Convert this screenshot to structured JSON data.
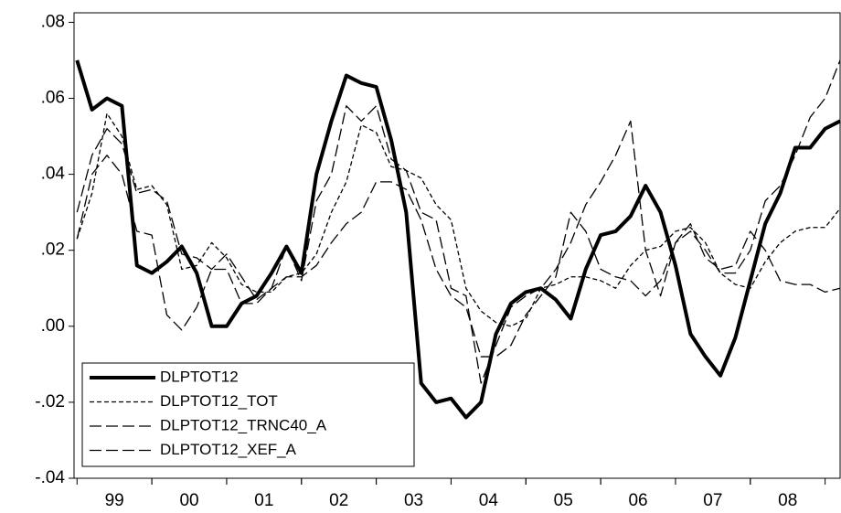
{
  "chart_data": {
    "type": "line",
    "x": [
      1999.0,
      1999.2,
      1999.4,
      1999.6,
      1999.8,
      2000.0,
      2000.2,
      2000.4,
      2000.6,
      2000.8,
      2001.0,
      2001.2,
      2001.4,
      2001.6,
      2001.8,
      2002.0,
      2002.2,
      2002.4,
      2002.6,
      2002.8,
      2003.0,
      2003.2,
      2003.4,
      2003.6,
      2003.8,
      2004.0,
      2004.2,
      2004.4,
      2004.6,
      2004.8,
      2005.0,
      2005.2,
      2005.4,
      2005.6,
      2005.8,
      2006.0,
      2006.2,
      2006.4,
      2006.6,
      2006.8,
      2007.0,
      2007.2,
      2007.4,
      2007.6,
      2007.8,
      2008.0,
      2008.2,
      2008.4,
      2008.6,
      2008.8,
      2009.0,
      2009.2
    ],
    "series": [
      {
        "name": "DLPTOT12",
        "color": "#000000",
        "line_style": "thick-solid",
        "values": [
          0.07,
          0.057,
          0.06,
          0.058,
          0.016,
          0.014,
          0.017,
          0.021,
          0.014,
          0.0,
          0.0,
          0.006,
          0.008,
          0.014,
          0.021,
          0.014,
          0.04,
          0.054,
          0.066,
          0.064,
          0.063,
          0.049,
          0.03,
          -0.015,
          -0.02,
          -0.019,
          -0.024,
          -0.02,
          -0.002,
          0.006,
          0.009,
          0.01,
          0.007,
          0.002,
          0.015,
          0.024,
          0.025,
          0.029,
          0.037,
          0.03,
          0.016,
          -0.002,
          -0.008,
          -0.013,
          -0.003,
          0.012,
          0.027,
          0.035,
          0.047,
          0.047,
          0.052,
          0.054
        ]
      },
      {
        "name": "DLPTOT12_TOT",
        "color": "#000000",
        "line_style": "short-dash",
        "values": [
          0.023,
          0.035,
          0.056,
          0.05,
          0.036,
          0.037,
          0.032,
          0.015,
          0.016,
          0.022,
          0.018,
          0.011,
          0.009,
          0.009,
          0.013,
          0.014,
          0.019,
          0.03,
          0.038,
          0.053,
          0.051,
          0.042,
          0.041,
          0.039,
          0.032,
          0.028,
          0.01,
          0.004,
          0.001,
          0.0,
          0.002,
          0.01,
          0.011,
          0.013,
          0.013,
          0.012,
          0.01,
          0.016,
          0.02,
          0.021,
          0.025,
          0.026,
          0.022,
          0.014,
          0.011,
          0.01,
          0.017,
          0.022,
          0.025,
          0.026,
          0.026,
          0.031
        ]
      },
      {
        "name": "DLPTOT12_TRNC40_A",
        "color": "#000000",
        "line_style": "long-dash",
        "values": [
          0.03,
          0.045,
          0.052,
          0.048,
          0.035,
          0.036,
          0.033,
          0.019,
          0.018,
          0.015,
          0.019,
          0.013,
          0.007,
          0.01,
          0.021,
          0.012,
          0.033,
          0.04,
          0.058,
          0.054,
          0.058,
          0.044,
          0.041,
          0.03,
          0.028,
          0.01,
          0.008,
          -0.015,
          -0.005,
          0.005,
          0.008,
          0.01,
          0.015,
          0.022,
          0.032,
          0.038,
          0.045,
          0.054,
          0.02,
          0.008,
          0.022,
          0.025,
          0.02,
          0.014,
          0.014,
          0.02,
          0.033,
          0.037,
          0.045,
          0.055,
          0.06,
          0.07
        ]
      },
      {
        "name": "DLPTOT12_XEF_A",
        "color": "#000000",
        "line_style": "long-dash",
        "values": [
          0.023,
          0.04,
          0.045,
          0.04,
          0.025,
          0.024,
          0.003,
          -0.001,
          0.005,
          0.015,
          0.015,
          0.006,
          0.006,
          0.01,
          0.013,
          0.013,
          0.016,
          0.022,
          0.027,
          0.03,
          0.038,
          0.038,
          0.036,
          0.028,
          0.015,
          0.008,
          0.005,
          -0.008,
          -0.008,
          -0.005,
          0.003,
          0.008,
          0.013,
          0.03,
          0.025,
          0.015,
          0.013,
          0.012,
          0.008,
          0.012,
          0.022,
          0.027,
          0.018,
          0.015,
          0.016,
          0.025,
          0.02,
          0.012,
          0.011,
          0.011,
          0.009,
          0.01
        ]
      }
    ],
    "xlim": [
      1998.96,
      2009.2
    ],
    "xticks": [
      {
        "value": 1999.5,
        "label": "99"
      },
      {
        "value": 2000.5,
        "label": "00"
      },
      {
        "value": 2001.5,
        "label": "01"
      },
      {
        "value": 2002.5,
        "label": "02"
      },
      {
        "value": 2003.5,
        "label": "03"
      },
      {
        "value": 2004.5,
        "label": "04"
      },
      {
        "value": 2005.5,
        "label": "05"
      },
      {
        "value": 2006.5,
        "label": "06"
      },
      {
        "value": 2007.5,
        "label": "07"
      },
      {
        "value": 2008.5,
        "label": "08"
      }
    ],
    "ylim": [
      -0.04,
      0.0825
    ],
    "yticks": [
      {
        "value": 0.08,
        "label": ".08"
      },
      {
        "value": 0.06,
        "label": ".06"
      },
      {
        "value": 0.04,
        "label": ".04"
      },
      {
        "value": 0.02,
        "label": ".02"
      },
      {
        "value": 0,
        "label": ".00"
      },
      {
        "value": -0.02,
        "label": "-.02"
      },
      {
        "value": -0.04,
        "label": "-.04"
      }
    ],
    "grid": false,
    "legend": "lower-left"
  }
}
